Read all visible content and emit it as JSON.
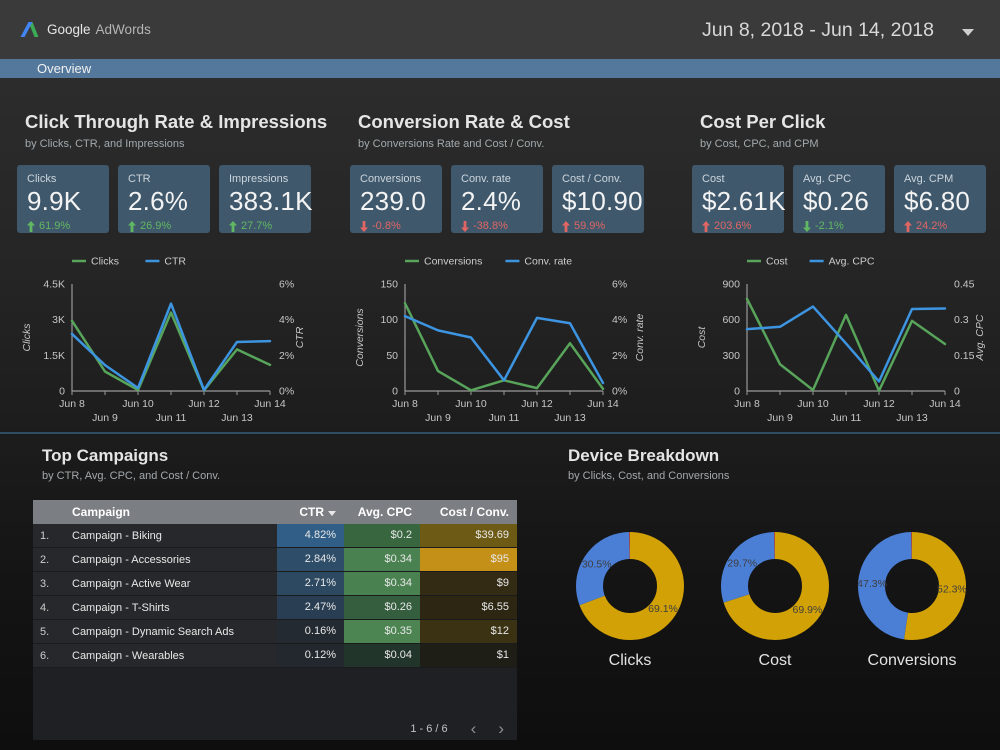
{
  "header": {
    "brand_google": "Google",
    "brand_adwords": "AdWords",
    "date_range": "Jun 8, 2018 - Jun 14, 2018"
  },
  "nav": {
    "overview_label": "Overview"
  },
  "colors": {
    "accent_bar": "#53789c",
    "card_bg": "#3f586c",
    "series_green": "#57a45a",
    "series_blue": "#3d94e1",
    "delta_green": "#62b862",
    "delta_red": "#e06663",
    "donut_gold": "#d2a106",
    "donut_blue": "#4b7fd6",
    "donut_red": "#c7432a"
  },
  "sections": [
    {
      "title": "Click Through Rate & Impressions",
      "subtitle": "by Clicks, CTR, and Impressions",
      "scorecards": [
        {
          "label": "Clicks",
          "value": "9.9K",
          "delta": "61.9%",
          "direction": "up",
          "tone": "green"
        },
        {
          "label": "CTR",
          "value": "2.6%",
          "delta": "26.9%",
          "direction": "up",
          "tone": "green"
        },
        {
          "label": "Impressions",
          "value": "383.1K",
          "delta": "27.7%",
          "direction": "up",
          "tone": "green"
        }
      ]
    },
    {
      "title": "Conversion Rate & Cost",
      "subtitle": "by Conversions Rate and Cost / Conv.",
      "scorecards": [
        {
          "label": "Conversions",
          "value": "239.0",
          "delta": "-0.8%",
          "direction": "down",
          "tone": "red"
        },
        {
          "label": "Conv. rate",
          "value": "2.4%",
          "delta": "-38.8%",
          "direction": "down",
          "tone": "red"
        },
        {
          "label": "Cost / Conv.",
          "value": "$10.90",
          "delta": "59.9%",
          "direction": "up",
          "tone": "red"
        }
      ]
    },
    {
      "title": "Cost Per Click",
      "subtitle": "by Cost, CPC, and CPM",
      "scorecards": [
        {
          "label": "Cost",
          "value": "$2.61K",
          "delta": "203.6%",
          "direction": "up",
          "tone": "red"
        },
        {
          "label": "Avg. CPC",
          "value": "$0.26",
          "delta": "-2.1%",
          "direction": "down",
          "tone": "green"
        },
        {
          "label": "Avg. CPM",
          "value": "$6.80",
          "delta": "24.2%",
          "direction": "up",
          "tone": "red"
        }
      ]
    }
  ],
  "chart_data": [
    {
      "type": "line",
      "x": [
        "Jun 8",
        "Jun 9",
        "Jun 10",
        "Jun 11",
        "Jun 12",
        "Jun 13",
        "Jun 14"
      ],
      "left_axis": {
        "label": "Clicks",
        "max": 4500,
        "ticks": [
          "0",
          "1.5K",
          "3K",
          "4.5K"
        ]
      },
      "right_axis": {
        "label": "CTR",
        "max": 6,
        "ticks": [
          "0%",
          "2%",
          "4%",
          "6%"
        ],
        "title_offset": 33
      },
      "series": [
        {
          "name": "Clicks",
          "axis": "left",
          "color": "#57a45a",
          "values": [
            2950,
            820,
            40,
            3300,
            30,
            1750,
            1100
          ]
        },
        {
          "name": "CTR",
          "axis": "right",
          "color": "#3d94e1",
          "values": [
            3.2,
            1.45,
            0.17,
            4.9,
            0.06,
            2.75,
            2.8
          ]
        }
      ]
    },
    {
      "type": "line",
      "x": [
        "Jun 8",
        "Jun 9",
        "Jun 10",
        "Jun 11",
        "Jun 12",
        "Jun 13",
        "Jun 14"
      ],
      "left_axis": {
        "label": "Conversions",
        "max": 150,
        "ticks": [
          "0",
          "50",
          "100",
          "150"
        ]
      },
      "right_axis": {
        "label": "Conv. rate",
        "max": 6,
        "ticks": [
          "0%",
          "2%",
          "4%",
          "6%"
        ],
        "title_offset": 40
      },
      "series": [
        {
          "name": "Conversions",
          "axis": "left",
          "color": "#57a45a",
          "values": [
            123,
            28,
            1,
            15,
            4,
            67,
            3
          ]
        },
        {
          "name": "Conv. rate",
          "axis": "right",
          "color": "#3d94e1",
          "values": [
            4.2,
            3.4,
            3.0,
            0.6,
            4.1,
            3.8,
            0.45
          ]
        }
      ]
    },
    {
      "type": "line",
      "x": [
        "Jun 8",
        "Jun 9",
        "Jun 10",
        "Jun 11",
        "Jun 12",
        "Jun 13",
        "Jun 14"
      ],
      "left_axis": {
        "label": "Cost",
        "max": 900,
        "ticks": [
          "0",
          "300",
          "600",
          "900"
        ]
      },
      "right_axis": {
        "label": "Avg. CPC",
        "max": 0.45,
        "ticks": [
          "0",
          "0.15",
          "0.3",
          "0.45"
        ],
        "title_offset": 38
      },
      "series": [
        {
          "name": "Cost",
          "axis": "left",
          "color": "#57a45a",
          "values": [
            775,
            225,
            8,
            640,
            2,
            590,
            395
          ]
        },
        {
          "name": "Avg. CPC",
          "axis": "right",
          "color": "#3d94e1",
          "values": [
            0.26,
            0.27,
            0.355,
            0.2,
            0.04,
            0.345,
            0.347
          ]
        }
      ]
    }
  ],
  "campaign_table": {
    "title": "Top Campaigns",
    "subtitle": "by CTR, Avg. CPC, and Cost / Conv.",
    "columns": [
      "Campaign",
      "CTR",
      "Avg. CPC",
      "Cost / Conv."
    ],
    "sorted_by": "CTR",
    "rows": [
      {
        "index": "1.",
        "name": "Campaign - Biking",
        "ctr": "4.82%",
        "ctr_bg": "#315e86",
        "cpc": "$0.2",
        "cpc_bg": "#38663f",
        "cost": "$39.69",
        "cost_bg": "#6d5a15"
      },
      {
        "index": "2.",
        "name": "Campaign - Accessories",
        "ctr": "2.84%",
        "ctr_bg": "#2d4d69",
        "cpc": "$0.34",
        "cpc_bg": "#4a8150",
        "cost": "$95",
        "cost_bg": "#c49018"
      },
      {
        "index": "3.",
        "name": "Campaign - Active Wear",
        "ctr": "2.71%",
        "ctr_bg": "#2c4961",
        "cpc": "$0.34",
        "cpc_bg": "#4a8150",
        "cost": "$9",
        "cost_bg": "#332b13"
      },
      {
        "index": "4.",
        "name": "Campaign - T-Shirts",
        "ctr": "2.47%",
        "ctr_bg": "#293e52",
        "cpc": "$0.26",
        "cpc_bg": "#355e3e",
        "cost": "$6.55",
        "cost_bg": "#2c2612"
      },
      {
        "index": "5.",
        "name": "Campaign - Dynamic Search Ads",
        "ctr": "0.16%",
        "ctr_bg": "#232a31",
        "cpc": "$0.35",
        "cpc_bg": "#4c8452",
        "cost": "$12",
        "cost_bg": "#3b3113"
      },
      {
        "index": "6.",
        "name": "Campaign - Wearables",
        "ctr": "0.12%",
        "ctr_bg": "#23282e",
        "cpc": "$0.04",
        "cpc_bg": "#22352a",
        "cost": "$1",
        "cost_bg": "#1e1d16"
      }
    ],
    "pagination": "1 - 6 / 6"
  },
  "device_breakdown": {
    "title": "Device Breakdown",
    "subtitle": "by Clicks, Cost, and Conversions",
    "donuts": [
      {
        "label": "Clicks",
        "segments": [
          {
            "pct": 69.1,
            "color": "#d2a106",
            "text": "69.1%"
          },
          {
            "pct": 30.5,
            "color": "#4b7fd6",
            "text": "30.5%"
          },
          {
            "pct": 0.4,
            "color": "#c7432a",
            "text": ""
          }
        ]
      },
      {
        "label": "Cost",
        "segments": [
          {
            "pct": 69.9,
            "color": "#d2a106",
            "text": "69.9%"
          },
          {
            "pct": 29.7,
            "color": "#4b7fd6",
            "text": "29.7%"
          },
          {
            "pct": 0.4,
            "color": "#c7432a",
            "text": ""
          }
        ]
      },
      {
        "label": "Conversions",
        "segments": [
          {
            "pct": 52.3,
            "color": "#d2a106",
            "text": "52.3%"
          },
          {
            "pct": 47.3,
            "color": "#4b7fd6",
            "text": "47.3%"
          },
          {
            "pct": 0.4,
            "color": "#c7432a",
            "text": ""
          }
        ]
      }
    ]
  }
}
